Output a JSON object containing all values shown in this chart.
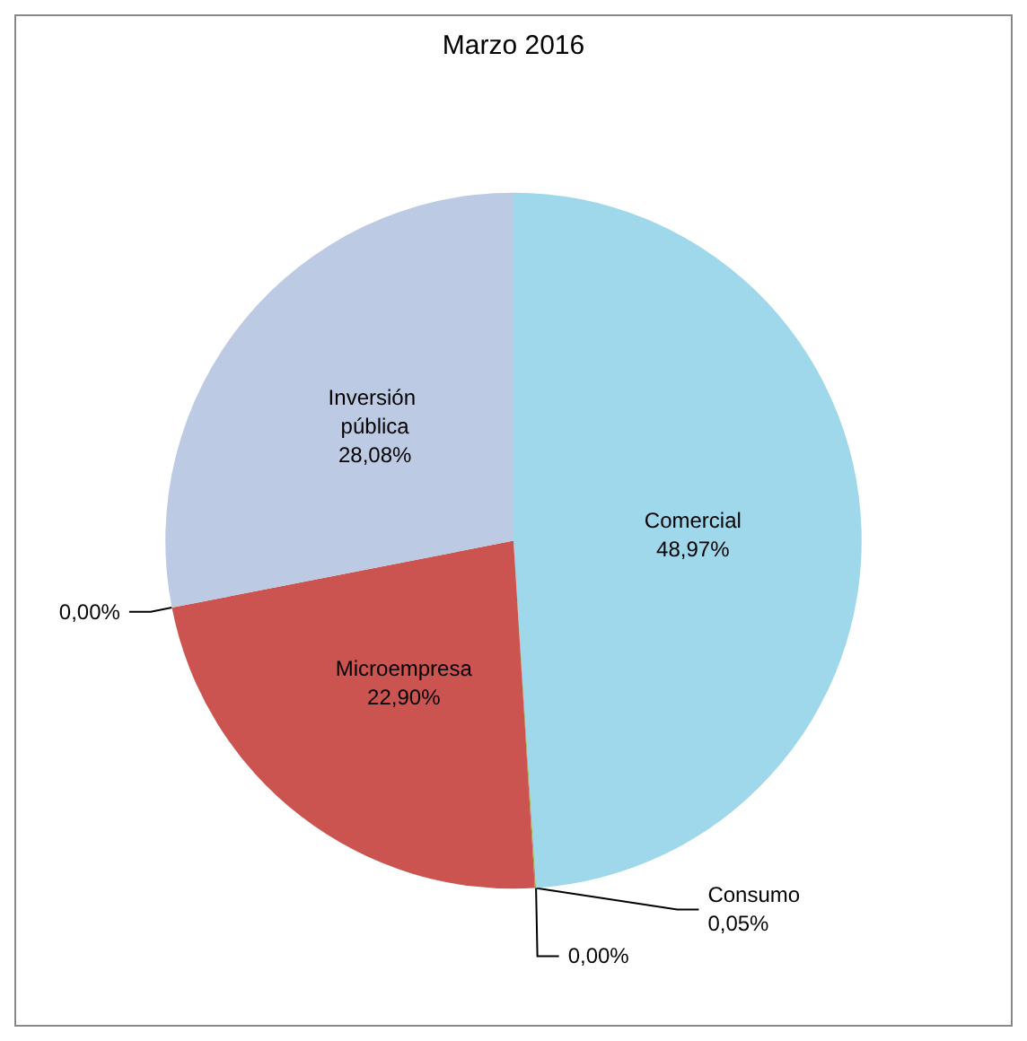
{
  "chart_data": {
    "type": "pie",
    "title": "Marzo 2016",
    "categories": [
      "Comercial",
      null,
      "Consumo",
      "Microempresa",
      null,
      "Inversión pública"
    ],
    "values": [
      48.97,
      0.0,
      0.05,
      22.9,
      0.0,
      28.08
    ],
    "value_labels": [
      "48,97%",
      "0,00%",
      "0,05%",
      "22,90%",
      "0,00%",
      "28,08%"
    ],
    "colors": [
      "#9ed8ea",
      "#f0a040",
      "#8fb04a",
      "#cc5450",
      "#8064a2",
      "#bccbe3"
    ],
    "legend": false
  }
}
